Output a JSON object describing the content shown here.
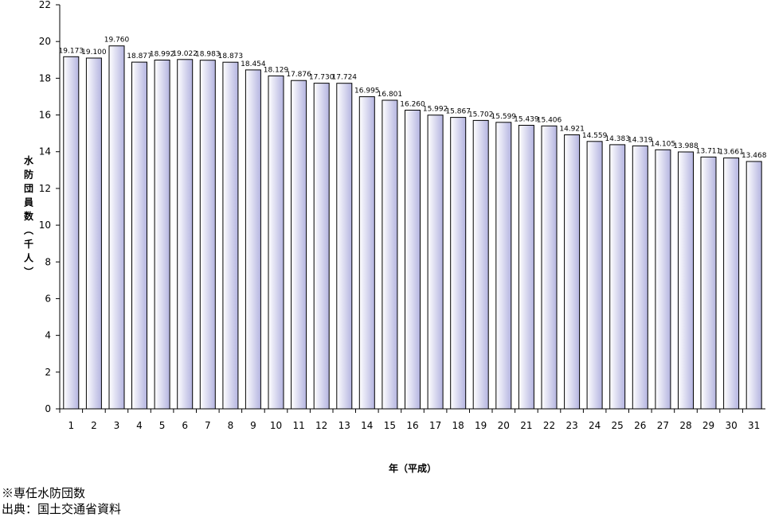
{
  "chart_data": {
    "type": "bar",
    "categories": [
      "1",
      "2",
      "3",
      "4",
      "5",
      "6",
      "7",
      "8",
      "9",
      "10",
      "11",
      "12",
      "13",
      "14",
      "15",
      "16",
      "17",
      "18",
      "19",
      "20",
      "21",
      "22",
      "23",
      "24",
      "25",
      "26",
      "27",
      "28",
      "29",
      "30",
      "31"
    ],
    "values": [
      19.173,
      19.1,
      19.76,
      18.877,
      18.992,
      19.022,
      18.983,
      18.873,
      18.454,
      18.129,
      17.876,
      17.73,
      17.724,
      16.995,
      16.801,
      16.26,
      15.992,
      15.867,
      15.702,
      15.599,
      15.439,
      15.406,
      14.921,
      14.559,
      14.383,
      14.319,
      14.105,
      13.988,
      13.711,
      13.661,
      13.468
    ],
    "value_labels": [
      "19.173",
      "19.100",
      "19.760",
      "18.877",
      "18.992",
      "19.022",
      "18.983",
      "18.873",
      "18.454",
      "18.129",
      "17.876",
      "17.730",
      "17.724",
      "16.995",
      "16.801",
      "16.260",
      "15.992",
      "15.867",
      "15.702",
      "15.599",
      "15.439",
      "15.406",
      "14.921",
      "14.559",
      "14.383",
      "14.319",
      "14.105",
      "13.988",
      "13.711",
      "13.661",
      "13.468"
    ],
    "xlabel": "年（平成）",
    "ylabel": "水防団員数（千人）",
    "ylim": [
      0,
      22
    ],
    "yticks": [
      0,
      2,
      4,
      6,
      8,
      10,
      12,
      14,
      16,
      18,
      20,
      22
    ],
    "grid": false,
    "bar_fill_light": "#ffffff",
    "bar_fill_dark": "#b4b4e0",
    "bar_stroke": "#000000"
  },
  "notes": {
    "line1": "※専任水防団数",
    "line2": "出典：国土交通省資料"
  }
}
